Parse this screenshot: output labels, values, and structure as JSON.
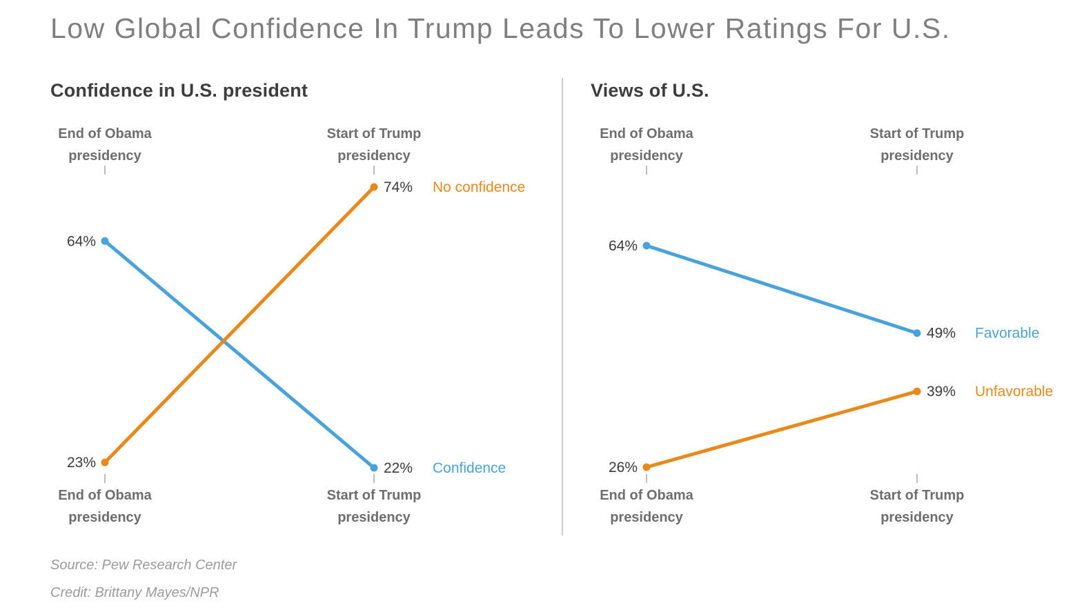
{
  "title": "Low Global Confidence In Trump Leads To Lower Ratings For U.S.",
  "footer": {
    "source": "Source: Pew Research Center",
    "credit": "Credit: Brittany Mayes/NPR"
  },
  "colors": {
    "blue": "#4aa2db",
    "orange": "#e8891c"
  },
  "chart_data": [
    {
      "type": "line",
      "variant": "slopegraph",
      "title": "Confidence in U.S. president",
      "categories": [
        "End of Obama presidency",
        "Start of Trump presidency"
      ],
      "category_lines": [
        [
          "End of Obama",
          "presidency"
        ],
        [
          "Start of Trump",
          "presidency"
        ]
      ],
      "series": [
        {
          "name": "Confidence",
          "color": "#4aa2db",
          "values": [
            64,
            22
          ],
          "value_labels": [
            "64%",
            "22%"
          ]
        },
        {
          "name": "No confidence",
          "color": "#e8891c",
          "values": [
            23,
            74
          ],
          "value_labels": [
            "23%",
            "74%"
          ]
        }
      ],
      "ylim": [
        22,
        74
      ],
      "grid": false,
      "legend_position": "right-of-end-points"
    },
    {
      "type": "line",
      "variant": "slopegraph",
      "title": "Views of U.S.",
      "categories": [
        "End of Obama presidency",
        "Start of Trump presidency"
      ],
      "category_lines": [
        [
          "End of Obama",
          "presidency"
        ],
        [
          "Start of Trump",
          "presidency"
        ]
      ],
      "series": [
        {
          "name": "Favorable",
          "color": "#4aa2db",
          "values": [
            64,
            49
          ],
          "value_labels": [
            "64%",
            "49%"
          ]
        },
        {
          "name": "Unfavorable",
          "color": "#e8891c",
          "values": [
            26,
            39
          ],
          "value_labels": [
            "26%",
            "39%"
          ]
        }
      ],
      "ylim": [
        26,
        64
      ],
      "grid": false,
      "legend_position": "right-of-end-points"
    }
  ]
}
